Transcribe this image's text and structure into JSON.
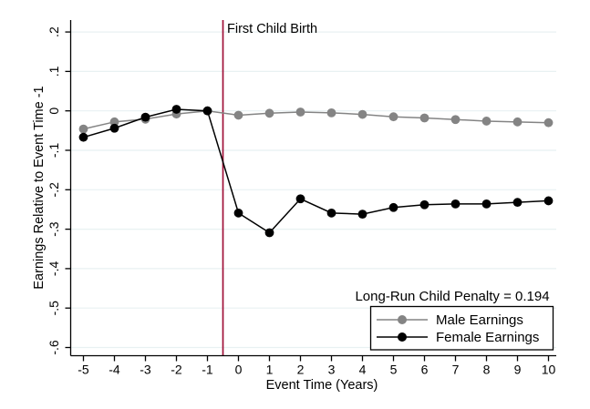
{
  "chart_data": {
    "type": "line",
    "title": "",
    "x": [
      -5,
      -4,
      -3,
      -2,
      -1,
      0,
      1,
      2,
      3,
      4,
      5,
      6,
      7,
      8,
      9,
      10
    ],
    "series": [
      {
        "name": "Male Earnings",
        "color": "#848484",
        "values": [
          -0.046,
          -0.028,
          -0.021,
          -0.008,
          0.0,
          -0.011,
          -0.006,
          -0.003,
          -0.005,
          -0.009,
          -0.015,
          -0.018,
          -0.022,
          -0.026,
          -0.028,
          -0.03
        ]
      },
      {
        "name": "Female Earnings",
        "color": "#000000",
        "values": [
          -0.067,
          -0.044,
          -0.016,
          0.004,
          0.0,
          -0.259,
          -0.309,
          -0.223,
          -0.259,
          -0.262,
          -0.245,
          -0.238,
          -0.236,
          -0.236,
          -0.232,
          -0.228
        ]
      }
    ],
    "xlabel": "Event Time (Years)",
    "ylabel": "Earnings Relative to Event Time -1",
    "xlim": [
      -5.4,
      10.65
    ],
    "ylim": [
      -0.62,
      0.23
    ],
    "xticks": {
      "values": [
        -5,
        -4,
        -3,
        -2,
        -1,
        0,
        1,
        2,
        3,
        4,
        5,
        6,
        7,
        8,
        9,
        10
      ],
      "labels": [
        "-5",
        "-4",
        "-3",
        "-2",
        "-1",
        "0",
        "1",
        "2",
        "3",
        "4",
        "5",
        "6",
        "7",
        "8",
        "9",
        "10"
      ]
    },
    "yticks": {
      "values": [
        0.2,
        0.1,
        0,
        -0.1,
        -0.2,
        -0.3,
        -0.4,
        -0.5,
        -0.6
      ],
      "labels": [
        ".2",
        ".1",
        "0",
        "-.1",
        "-.2",
        "-.3",
        "-.4",
        "-.5",
        "-.6"
      ]
    },
    "grid": "horizontal",
    "gridline_color": "#e8f1f2",
    "axis_color": "#000000",
    "vline": {
      "x": -0.5,
      "label": "First Child Birth",
      "color": "#a01038"
    },
    "annotation": {
      "text": "Long-Run Child Penalty = 0.194"
    },
    "legend": {
      "position": "inside-bottom-right",
      "border": true,
      "background": "#ffffff"
    }
  }
}
